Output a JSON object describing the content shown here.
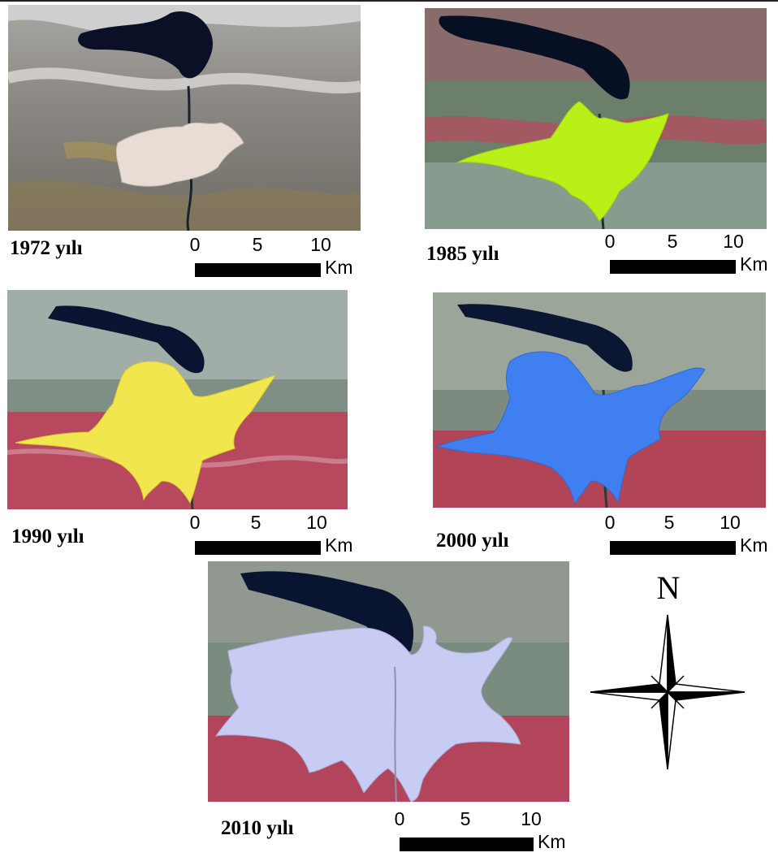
{
  "figure": {
    "north_label": "N",
    "scale_unit": "Km",
    "scale_ticks": [
      "0",
      "5",
      "10"
    ],
    "panels": [
      {
        "id": "1972",
        "label": "1972 yılı",
        "urban_color": "#e8dcd4",
        "palette": "natural"
      },
      {
        "id": "1985",
        "label": "1985 yılı",
        "urban_color": "#b8f018",
        "palette": "false-color"
      },
      {
        "id": "1990",
        "label": "1990 yılı",
        "urban_color": "#f2e64e",
        "palette": "false-color"
      },
      {
        "id": "2000",
        "label": "2000 yılı",
        "urban_color": "#3f7ff0",
        "palette": "false-color"
      },
      {
        "id": "2010",
        "label": "2010 yılı",
        "urban_color": "#c8cbf2",
        "palette": "false-color"
      }
    ]
  }
}
